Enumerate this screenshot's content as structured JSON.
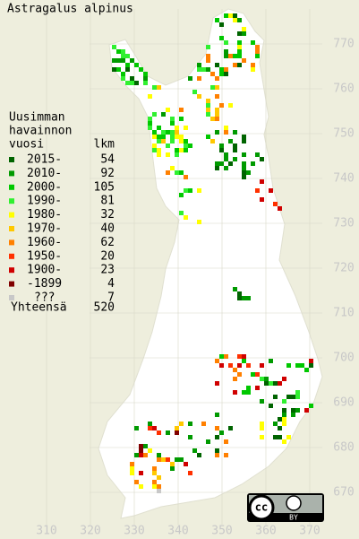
{
  "title": "Astragalus alpinus",
  "legend": {
    "heading": [
      "Uusimman",
      "havainnon",
      "vuosi"
    ],
    "count_heading": "lkm",
    "items": [
      {
        "label": "2015-",
        "count": 54,
        "color": "#006400"
      },
      {
        "label": "2010-",
        "count": 92,
        "color": "#009a00"
      },
      {
        "label": "2000-",
        "count": 105,
        "color": "#00c800"
      },
      {
        "label": "1990-",
        "count": 81,
        "color": "#30f030"
      },
      {
        "label": "1980-",
        "count": 32,
        "color": "#ffff00"
      },
      {
        "label": "1970-",
        "count": 40,
        "color": "#ffc800"
      },
      {
        "label": "1960-",
        "count": 62,
        "color": "#ff8000"
      },
      {
        "label": "1950-",
        "count": 20,
        "color": "#ff3000"
      },
      {
        "label": "1900-",
        "count": 23,
        "color": "#d00000"
      },
      {
        "label": "-1899",
        "count": 4,
        "color": "#800000"
      },
      {
        "label": "???",
        "count": 7,
        "color": "#c8c8c8"
      }
    ],
    "total_label": "Yhteensä",
    "total": 520
  },
  "northing_ticks": [
    670,
    680,
    690,
    700,
    710,
    720,
    730,
    740,
    750,
    760,
    770
  ],
  "easting_ticks": [
    310,
    320,
    330,
    340,
    350,
    360,
    370
  ],
  "badge": {
    "cc": "cc",
    "by": "BY"
  }
}
